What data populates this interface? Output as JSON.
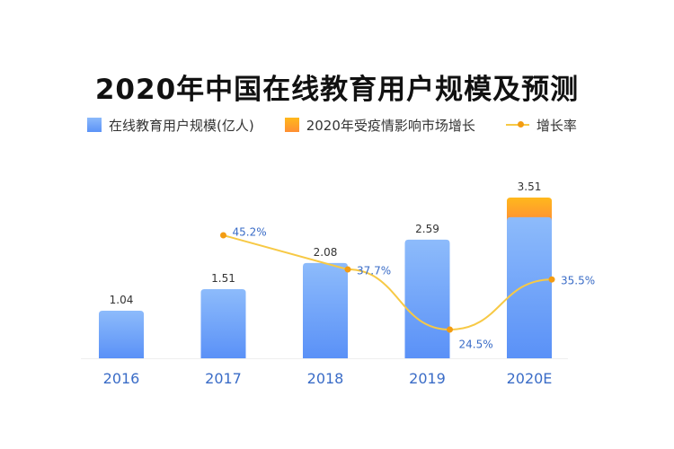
{
  "chart_data": {
    "type": "bar",
    "title": "2020年中国在线教育用户规模及预测",
    "categories": [
      "2016",
      "2017",
      "2018",
      "2019",
      "2020E"
    ],
    "series": [
      {
        "name": "在线教育用户规模(亿人)",
        "type": "bar",
        "values": [
          1.04,
          1.51,
          2.08,
          2.59,
          3.08
        ],
        "color": "#5b93f7"
      },
      {
        "name": "2020年受疫情影响市场增长",
        "type": "bar-stack",
        "values": [
          0,
          0,
          0,
          0,
          0.43
        ],
        "color": "#ff9f2a"
      },
      {
        "name": "增长率",
        "type": "line",
        "values": [
          null,
          45.2,
          37.7,
          24.5,
          35.5
        ],
        "color": "#f7c945"
      }
    ],
    "bar_labels": [
      "1.04",
      "1.51",
      "2.08",
      "2.59",
      "3.51"
    ],
    "line_labels": [
      "",
      "45.2%",
      "37.7%",
      "24.5%",
      "35.5%"
    ],
    "xlabel": "",
    "ylabel": "",
    "ylim": [
      0,
      3.6
    ],
    "grid": false,
    "legend_position": "top"
  },
  "legend": [
    {
      "label": "在线教育用户规模(亿人)",
      "icon": "blue-square"
    },
    {
      "label": "2020年受疫情影响市场增长",
      "icon": "orange-square"
    },
    {
      "label": "增长率",
      "icon": "line-dot"
    }
  ]
}
